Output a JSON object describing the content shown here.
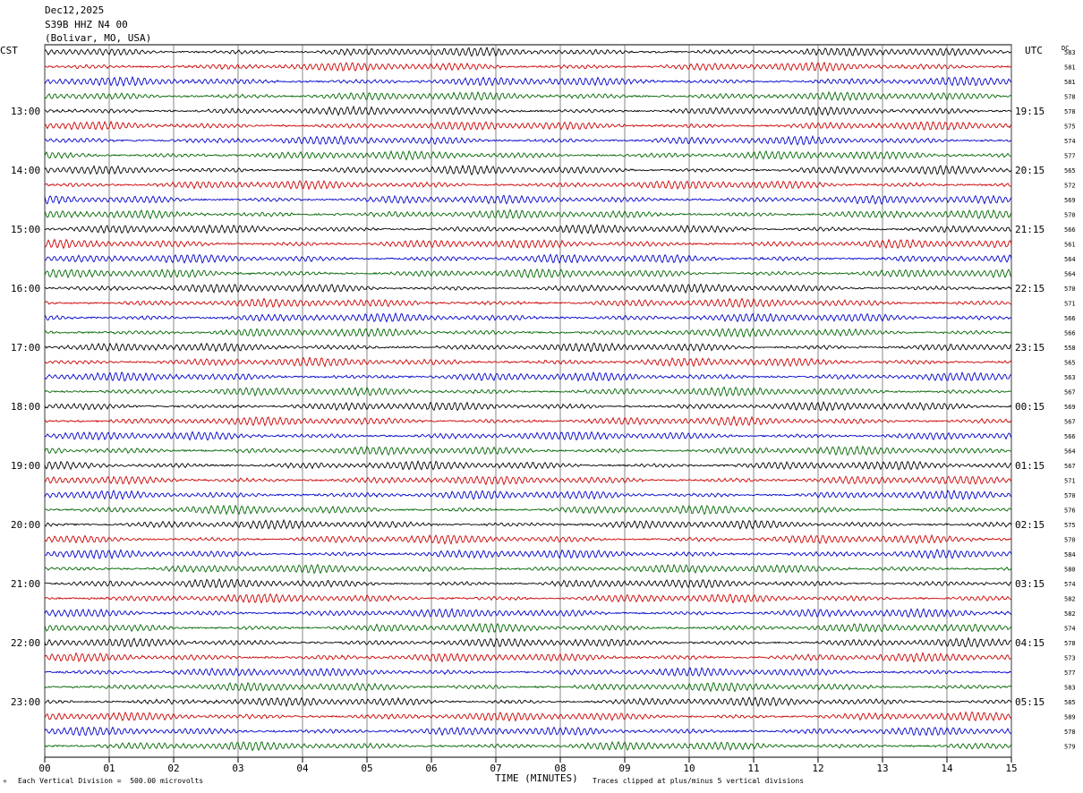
{
  "header": {
    "date": "Dec12,2025",
    "station": "S39B HHZ N4 00",
    "location": "(Bolivar, MO, USA)"
  },
  "left_timezone": "CST",
  "right_timezone": "UTC",
  "dc_label": "DC",
  "footer": {
    "scale_note": "Each Vertical Division =  500.00 microvolts",
    "x_axis_label": "TIME (MINUTES)",
    "clip_note": "Traces clipped at plus/minus 5 vertical divisions"
  },
  "colors": {
    "trace_cycle": [
      "#000000",
      "#cc0000",
      "#0000cc",
      "#006600"
    ],
    "grid": "#000000"
  },
  "chart_data": {
    "type": "line",
    "description_of_axes": "helicorder",
    "x_ticks": [
      "00",
      "01",
      "02",
      "03",
      "04",
      "05",
      "06",
      "07",
      "08",
      "09",
      "10",
      "11",
      "12",
      "13",
      "14",
      "15"
    ],
    "xlim": [
      0,
      15
    ],
    "left_hour_labels": [
      "13:00",
      "14:00",
      "15:00",
      "16:00",
      "17:00",
      "18:00",
      "19:00",
      "20:00",
      "21:00",
      "22:00",
      "23:00"
    ],
    "right_hour_labels": [
      "19:15",
      "20:15",
      "21:15",
      "22:15",
      "23:15",
      "00:15",
      "01:15",
      "02:15",
      "03:15",
      "04:15",
      "05:15"
    ],
    "dc_offsets": [
      583,
      581,
      581,
      578,
      578,
      575,
      574,
      577,
      565,
      572,
      569,
      570,
      566,
      561,
      564,
      564,
      570,
      571,
      566,
      566,
      558,
      565,
      563,
      567,
      569,
      567,
      566,
      564,
      567,
      571,
      570,
      576,
      575,
      570,
      584,
      580,
      574,
      582,
      582,
      574,
      578,
      573,
      577,
      583,
      585,
      589,
      578,
      579
    ]
  }
}
